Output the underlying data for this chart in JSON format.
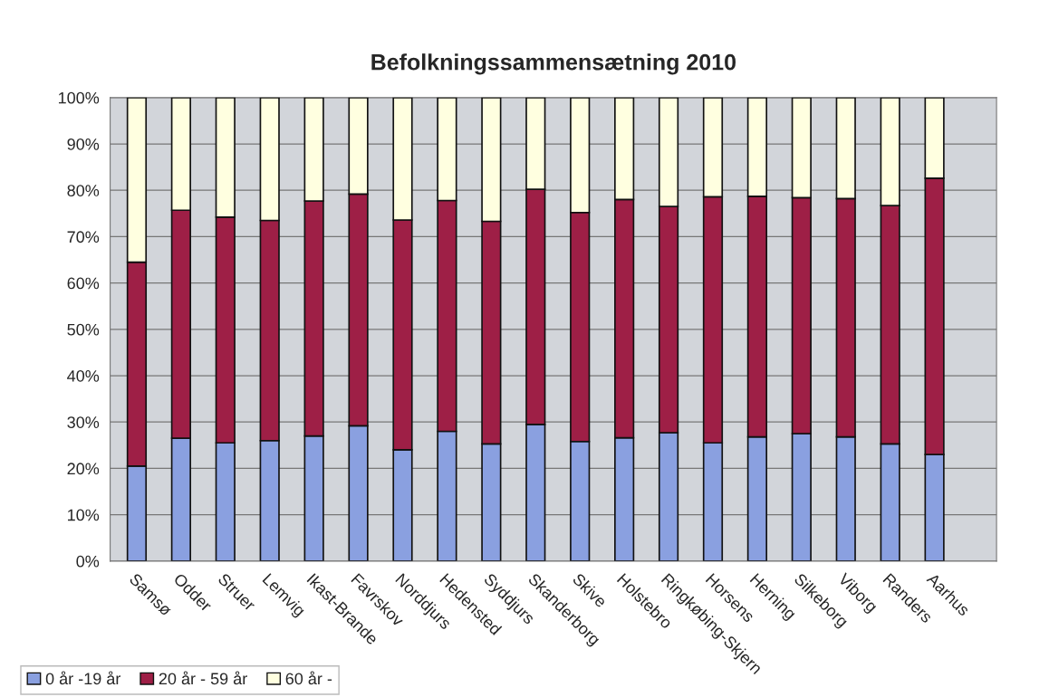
{
  "chart_data": {
    "type": "bar",
    "title": "Befolkningssammensætning 2010",
    "stacked": true,
    "categories": [
      "Samsø",
      "Odder",
      "Struer",
      "Lemvig",
      "Ikast-Brande",
      "Favrskov",
      "Norddjurs",
      "Hedensted",
      "Syddjurs",
      "Skanderborg",
      "Skive",
      "Holstebro",
      "Ringkøbing-Skjern",
      "Horsens",
      "Herning",
      "Silkeborg",
      "Viborg",
      "Randers",
      "Aarhus"
    ],
    "series": [
      {
        "name": "0 år -19 år",
        "color": "#8aa0e0",
        "values": [
          20.5,
          26.5,
          25.5,
          26.0,
          27.0,
          29.2,
          24.0,
          28.0,
          25.3,
          29.5,
          25.8,
          26.6,
          27.7,
          25.5,
          26.8,
          27.5,
          26.8,
          25.3,
          23.0
        ]
      },
      {
        "name": "20 år - 59 år",
        "color": "#9e1f46",
        "values": [
          44.0,
          49.2,
          48.7,
          47.5,
          50.7,
          50.0,
          49.6,
          49.8,
          48.0,
          50.7,
          49.4,
          51.4,
          48.8,
          53.1,
          51.9,
          50.9,
          51.4,
          51.4,
          59.6
        ]
      },
      {
        "name": "60 år -",
        "color": "#ffffe0",
        "values": [
          35.5,
          24.3,
          25.8,
          26.5,
          22.3,
          20.8,
          26.4,
          22.2,
          26.7,
          19.8,
          24.8,
          22.0,
          23.5,
          21.4,
          21.3,
          21.6,
          21.8,
          23.3,
          17.4
        ]
      }
    ],
    "ylim": [
      0,
      100
    ],
    "yticks": [
      {
        "value": 0,
        "label": "0%"
      },
      {
        "value": 10,
        "label": "10%"
      },
      {
        "value": 20,
        "label": "20%"
      },
      {
        "value": 30,
        "label": "30%"
      },
      {
        "value": 40,
        "label": "40%"
      },
      {
        "value": 50,
        "label": "50%"
      },
      {
        "value": 60,
        "label": "60%"
      },
      {
        "value": 70,
        "label": "70%"
      },
      {
        "value": 80,
        "label": "80%"
      },
      {
        "value": 90,
        "label": "90%"
      },
      {
        "value": 100,
        "label": "100%"
      }
    ],
    "grid": "y",
    "legend": "bottom left"
  }
}
